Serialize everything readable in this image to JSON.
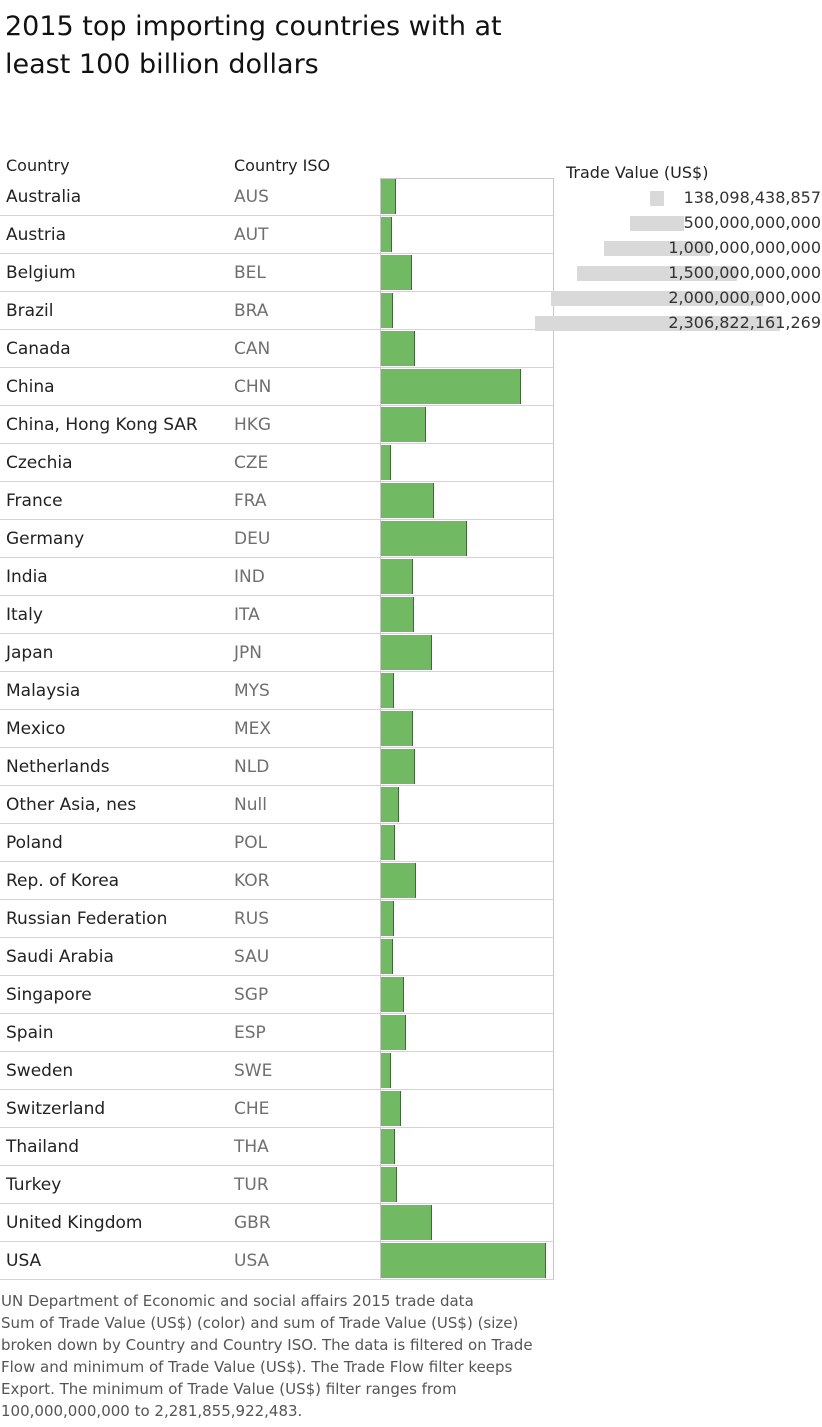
{
  "title": "2015 top importing countries with at least 100 billion dollars",
  "columns": {
    "country": "Country",
    "iso": "Country ISO"
  },
  "legend": {
    "title": "Trade Value (US$)",
    "items": [
      {
        "label": "138,098,438,857",
        "value": 138098438857
      },
      {
        "label": "500,000,000,000",
        "value": 500000000000
      },
      {
        "label": "1,000,000,000,000",
        "value": 1000000000000
      },
      {
        "label": "1,500,000,000,000",
        "value": 1500000000000
      },
      {
        "label": "2,000,000,000,000",
        "value": 2000000000000
      },
      {
        "label": "2,306,822,161,269",
        "value": 2306822161269
      }
    ]
  },
  "caption": {
    "line1": "UN Department of Economic and social affairs 2015 trade data",
    "line2": "Sum of Trade Value (US$) (color) and sum of Trade Value (US$) (size) broken down by Country and Country ISO. The data is filtered on Trade Flow and minimum of Trade Value (US$). The Trade Flow filter keeps Export. The minimum of Trade Value (US$) filter ranges from 100,000,000,000 to 2,281,855,922,483."
  },
  "colors": {
    "bar": "#72b964",
    "bar_edge": "#3d6b34",
    "legend_bar": "#d9d9d9"
  },
  "chart_data": {
    "type": "bar",
    "orientation": "horizontal",
    "title": "2015 top importing countries with at least 100 billion dollars",
    "xlim": [
      0,
      2306822161269
    ],
    "categories": [
      "Australia",
      "Austria",
      "Belgium",
      "Brazil",
      "Canada",
      "China",
      "China, Hong Kong SAR",
      "Czechia",
      "France",
      "Germany",
      "India",
      "Italy",
      "Japan",
      "Malaysia",
      "Mexico",
      "Netherlands",
      "Other Asia, nes",
      "Poland",
      "Rep. of Korea",
      "Russian Federation",
      "Saudi Arabia",
      "Singapore",
      "Spain",
      "Sweden",
      "Switzerland",
      "Thailand",
      "Turkey",
      "United Kingdom",
      "USA"
    ],
    "iso": [
      "AUS",
      "AUT",
      "BEL",
      "BRA",
      "CAN",
      "CHN",
      "HKG",
      "CZE",
      "FRA",
      "DEU",
      "IND",
      "ITA",
      "JPN",
      "MYS",
      "MEX",
      "NLD",
      "Null",
      "POL",
      "KOR",
      "RUS",
      "SAU",
      "SGP",
      "ESP",
      "SWE",
      "CHE",
      "THA",
      "TUR",
      "GBR",
      "USA"
    ],
    "values": [
      208000000000,
      155000000000,
      431000000000,
      171000000000,
      475000000000,
      1960000000000,
      633000000000,
      138098438857,
      743000000000,
      1200000000000,
      450000000000,
      462000000000,
      710000000000,
      176000000000,
      450000000000,
      476000000000,
      250000000000,
      200000000000,
      487000000000,
      180000000000,
      170000000000,
      317000000000,
      353000000000,
      140000000000,
      277000000000,
      200000000000,
      220000000000,
      720000000000,
      2306822161269
    ]
  }
}
